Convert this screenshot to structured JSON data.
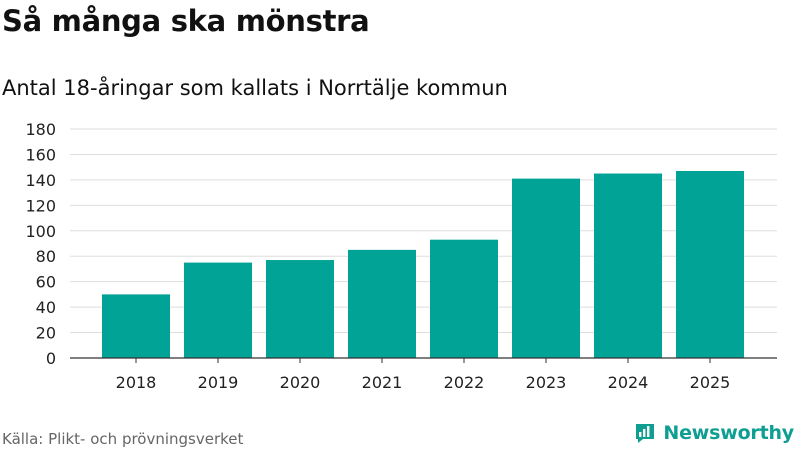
{
  "header": {
    "title": "Så många ska mönstra",
    "subtitle": "Antal 18-åringar som kallats i Norrtälje kommun"
  },
  "footer": {
    "source": "Källa: Plikt- och prövningsverket",
    "brand": "Newsworthy",
    "brand_icon": "newsworthy-logo-icon"
  },
  "colors": {
    "bar": "#00a396",
    "grid": "#dddddd",
    "axis": "#333333",
    "brand": "#0e9e92"
  },
  "chart_data": {
    "type": "bar",
    "title": "Så många ska mönstra",
    "subtitle": "Antal 18-åringar som kallats i Norrtälje kommun",
    "categories": [
      "2018",
      "2019",
      "2020",
      "2021",
      "2022",
      "2023",
      "2024",
      "2025"
    ],
    "values": [
      50,
      75,
      77,
      85,
      93,
      141,
      145,
      147
    ],
    "yticks": [
      0,
      20,
      40,
      60,
      80,
      100,
      120,
      140,
      160,
      180
    ],
    "ylim": [
      0,
      180
    ],
    "grid": true,
    "legend": "none"
  }
}
